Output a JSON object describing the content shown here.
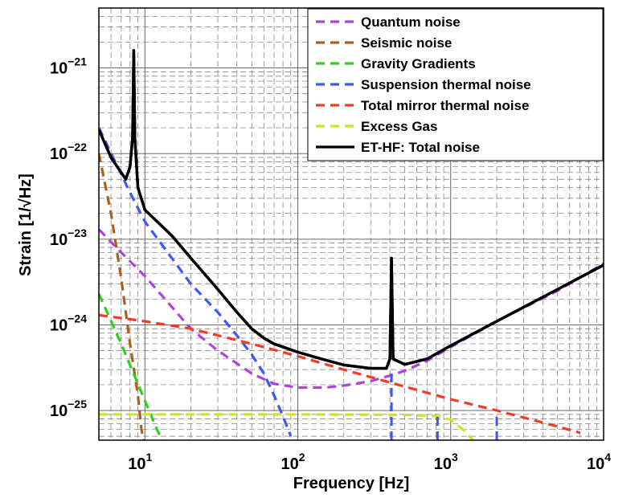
{
  "chart_data": {
    "type": "line",
    "xlabel": "Frequency [Hz]",
    "ylabel": "Strain [1/√Hz]",
    "xscale": "log",
    "yscale": "log",
    "xlim": [
      5,
      10000
    ],
    "ylim": [
      4.5e-26,
      5e-21
    ],
    "grid": "on (major and minor, dashed)",
    "legend_position": "top-right",
    "x_ticks": [
      {
        "value": 10,
        "base": "10",
        "exp": "1"
      },
      {
        "value": 100,
        "base": "10",
        "exp": "2"
      },
      {
        "value": 1000,
        "base": "10",
        "exp": "3"
      },
      {
        "value": 10000,
        "base": "10",
        "exp": "4"
      }
    ],
    "y_ticks": [
      {
        "value": 1e-21,
        "base": "10",
        "exp": "−21"
      },
      {
        "value": 1e-22,
        "base": "10",
        "exp": "−22"
      },
      {
        "value": 1e-23,
        "base": "10",
        "exp": "−23"
      },
      {
        "value": 1e-24,
        "base": "10",
        "exp": "−24"
      },
      {
        "value": 1e-25,
        "base": "10",
        "exp": "−25"
      }
    ],
    "series": [
      {
        "name": "Quantum noise",
        "color": "#b23fe0",
        "dash": true,
        "points": [
          [
            5,
            1.3e-23
          ],
          [
            7,
            7e-24
          ],
          [
            10,
            3.7e-24
          ],
          [
            20,
            9e-25
          ],
          [
            30,
            5e-25
          ],
          [
            50,
            2.7e-25
          ],
          [
            70,
            2.05e-25
          ],
          [
            100,
            1.85e-25
          ],
          [
            150,
            1.85e-25
          ],
          [
            200,
            1.95e-25
          ],
          [
            300,
            2.2e-25
          ],
          [
            400,
            2.55e-25
          ],
          [
            500,
            2.9e-25
          ],
          [
            700,
            3.8e-25
          ],
          [
            1000,
            5.5e-25
          ],
          [
            2000,
            1.1e-24
          ],
          [
            5000,
            2.5e-24
          ],
          [
            10000,
            5.2e-24
          ]
        ]
      },
      {
        "name": "Seismic noise",
        "color": "#a8621c",
        "dash": true,
        "points": [
          [
            5,
            1e-22
          ],
          [
            6,
            2e-23
          ],
          [
            7,
            3.5e-24
          ],
          [
            8,
            6e-25
          ],
          [
            9,
            1.5e-25
          ],
          [
            9.5,
            6e-26
          ],
          [
            9.8,
            4.5e-26
          ]
        ]
      },
      {
        "name": "Gravity Gradients",
        "color": "#2ad21c",
        "dash": true,
        "points": [
          [
            5,
            2.3e-24
          ],
          [
            7,
            6e-25
          ],
          [
            10,
            1.3e-25
          ],
          [
            12,
            6e-26
          ],
          [
            13,
            4.5e-26
          ]
        ]
      },
      {
        "name": "Suspension thermal noise",
        "color": "#3f57f5",
        "dash": true,
        "points": [
          [
            5,
            2e-22
          ],
          [
            8,
            3.5e-23
          ],
          [
            10,
            1.6e-23
          ],
          [
            20,
            3e-24
          ],
          [
            30,
            1.4e-24
          ],
          [
            40,
            7.5e-25
          ],
          [
            50,
            4.5e-25
          ],
          [
            60,
            2.7e-25
          ],
          [
            70,
            1.5e-25
          ],
          [
            80,
            8.5e-26
          ],
          [
            90,
            5e-26
          ]
        ]
      },
      {
        "name": "Total mirror thermal noise",
        "color": "#f53a28",
        "dash": true,
        "points": [
          [
            5,
            1.3e-24
          ],
          [
            10,
            1.1e-24
          ],
          [
            20,
            9e-25
          ],
          [
            50,
            6e-25
          ],
          [
            100,
            4.3e-25
          ],
          [
            200,
            3e-25
          ],
          [
            500,
            1.9e-25
          ],
          [
            1000,
            1.35e-25
          ],
          [
            2000,
            1e-25
          ],
          [
            5000,
            6.5e-26
          ],
          [
            7000,
            5.5e-26
          ]
        ]
      },
      {
        "name": "Excess Gas",
        "color": "#d2e41c",
        "dash": true,
        "points": [
          [
            5,
            9e-26
          ],
          [
            100,
            9e-26
          ],
          [
            500,
            8.9e-26
          ],
          [
            800,
            8.6e-26
          ],
          [
            1000,
            7.8e-26
          ],
          [
            1200,
            6e-26
          ],
          [
            1400,
            4.5e-26
          ]
        ]
      },
      {
        "name": "ET-HF: Total noise",
        "color": "#000000",
        "dash": false,
        "points": [
          [
            5,
            1.9e-22
          ],
          [
            6,
            9e-23
          ],
          [
            7,
            6e-23
          ],
          [
            7.5,
            5e-23
          ],
          [
            8,
            7e-23
          ],
          [
            8.3,
            1.5e-22
          ],
          [
            8.45,
            1.6e-21
          ],
          [
            8.6,
            1.5e-22
          ],
          [
            9,
            4e-23
          ],
          [
            10,
            2.2e-23
          ],
          [
            15,
            1.1e-23
          ],
          [
            20,
            6e-24
          ],
          [
            30,
            2.6e-24
          ],
          [
            40,
            1.4e-24
          ],
          [
            50,
            9e-25
          ],
          [
            60,
            7e-25
          ],
          [
            70,
            6e-25
          ],
          [
            100,
            4.8e-25
          ],
          [
            150,
            3.9e-25
          ],
          [
            200,
            3.4e-25
          ],
          [
            300,
            3.1e-25
          ],
          [
            380,
            3.1e-25
          ],
          [
            400,
            4e-25
          ],
          [
            410,
            6e-24
          ],
          [
            420,
            4e-25
          ],
          [
            500,
            3.45e-25
          ],
          [
            700,
            4e-25
          ],
          [
            1000,
            5.7e-25
          ],
          [
            2000,
            1.1e-24
          ],
          [
            5000,
            2.6e-24
          ],
          [
            10000,
            5e-24
          ]
        ]
      }
    ],
    "spur_lines": [
      {
        "color": "#3f57f5",
        "x": 410,
        "y_from": 4.5e-26,
        "y_to": 3e-25
      },
      {
        "color": "#3f57f5",
        "x": 820,
        "y_from": 4.5e-26,
        "y_to": 9e-26
      },
      {
        "color": "#3f57f5",
        "x": 2000,
        "y_from": 4.5e-26,
        "y_to": 1e-25
      }
    ]
  }
}
